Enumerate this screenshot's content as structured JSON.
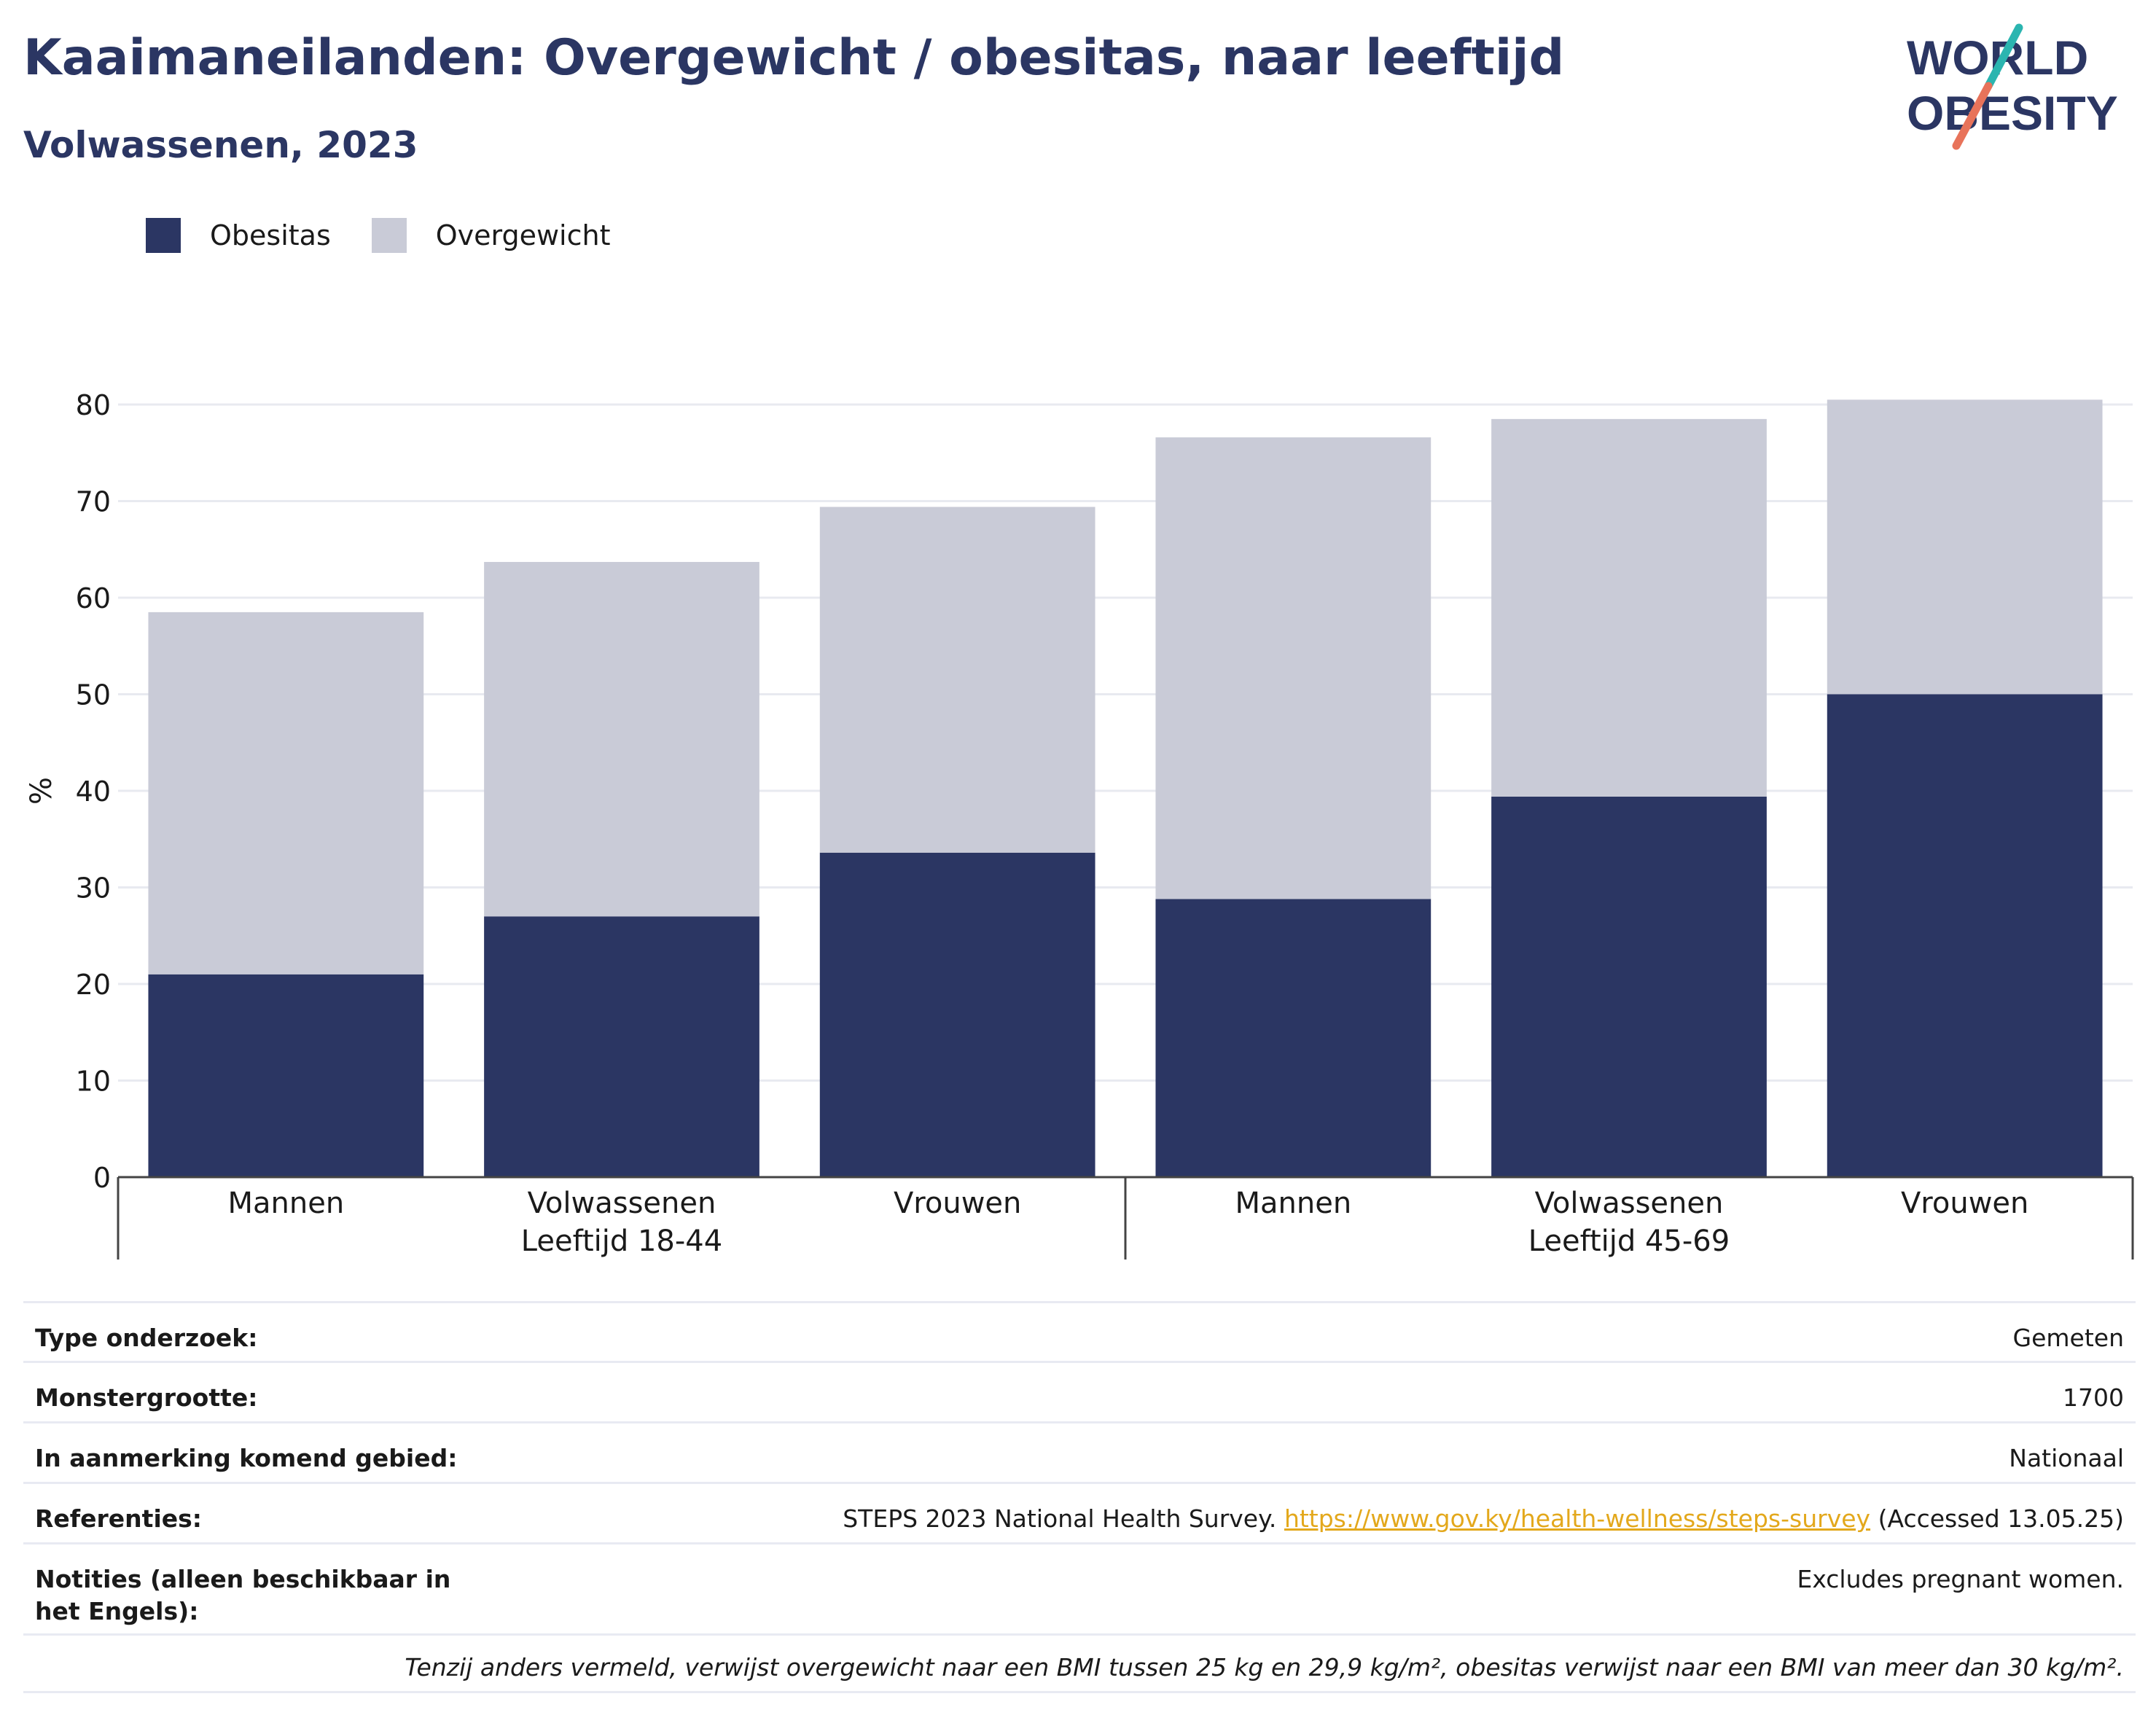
{
  "header": {
    "title": "Kaaimaneilanden: Overgewicht / obesitas, naar leeftijd",
    "subtitle": "Volwassenen, 2023",
    "logo_line1": "WORLD",
    "logo_line2": "OBESITY"
  },
  "legend": {
    "obesity_label": "Obesitas",
    "overweight_label": "Overgewicht"
  },
  "colors": {
    "obesity": "#2b3663",
    "overweight": "#c9cbd7",
    "logo_teal": "#2bb5b0",
    "logo_coral": "#e8735a",
    "grid": "#e8eaf0"
  },
  "chart_data": {
    "type": "bar",
    "stacked": true,
    "ylabel": "%",
    "ylim": [
      0,
      80
    ],
    "yticks": [
      0,
      10,
      20,
      30,
      40,
      50,
      60,
      70,
      80
    ],
    "grid": true,
    "legend_position": "top-left",
    "groups": [
      {
        "label": "Leeftijd 18-44",
        "categories": [
          "Mannen",
          "Volwassenen",
          "Vrouwen"
        ]
      },
      {
        "label": "Leeftijd 45-69",
        "categories": [
          "Mannen",
          "Volwassenen",
          "Vrouwen"
        ]
      }
    ],
    "series": [
      {
        "name": "Obesitas",
        "values": [
          21.0,
          27.0,
          33.6,
          28.8,
          39.4,
          50.0
        ]
      },
      {
        "name": "Overgewicht",
        "values": [
          37.5,
          36.7,
          35.8,
          47.8,
          39.1,
          30.5
        ]
      }
    ]
  },
  "info": {
    "rows": [
      {
        "label": "Type onderzoek:",
        "value": "Gemeten"
      },
      {
        "label": "Monstergrootte:",
        "value": "1700"
      },
      {
        "label": "In aanmerking komend gebied:",
        "value": "Nationaal"
      }
    ],
    "references_label": "Referenties:",
    "references_text": "STEPS 2023 National Health Survey.",
    "references_link": "https://www.gov.ky/health-wellness/steps-survey",
    "references_suffix": "(Accessed 13.05.25)",
    "notes_label": "Notities (alleen beschikbaar in het Engels):",
    "notes_value": "Excludes pregnant women.",
    "footnote": "Tenzij anders vermeld, verwijst overgewicht naar een BMI tussen 25 kg en 29,9 kg/m², obesitas verwijst naar een BMI van meer dan 30 kg/m²."
  }
}
